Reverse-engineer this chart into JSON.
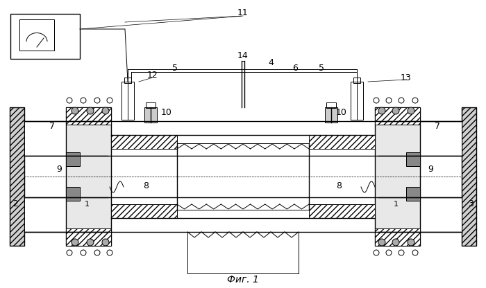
{
  "title": "",
  "caption": "Фиг. 1",
  "bg_color": "#ffffff",
  "line_color": "#000000",
  "hatch_color": "#000000",
  "label_11": "11",
  "label_12": "12",
  "label_5a": "5",
  "label_14": "14",
  "label_4": "4",
  "label_6": "6",
  "label_5b": "5",
  "label_13": "13",
  "label_7a": "7",
  "label_10a": "10",
  "label_10b": "10",
  "label_7b": "7",
  "label_9a": "9",
  "label_1a": "1",
  "label_8a": "8",
  "label_8b": "8",
  "label_1b": "1",
  "label_9b": "9",
  "label_2": "2",
  "label_3": "3"
}
